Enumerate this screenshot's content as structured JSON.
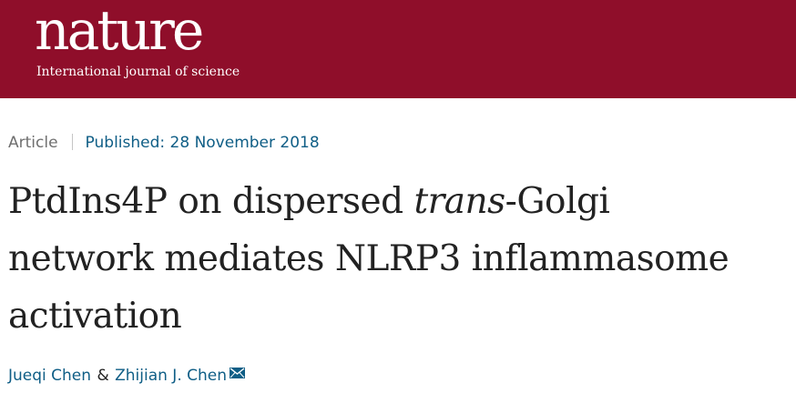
{
  "masthead": {
    "logo_text": "nature",
    "tagline": "International journal of science",
    "background_color": "#8f0e2a"
  },
  "article": {
    "type": "Article",
    "published_label": "Published:",
    "published_date": "28 November 2018",
    "title": {
      "line1_before_italic": "PtdIns4P on dispersed ",
      "line1_italic": "trans",
      "line1_after_italic": "-Golgi",
      "line2": "network mediates NLRP3 inflammasome",
      "line3": "activation"
    },
    "authors": [
      {
        "name": "Jueqi Chen"
      },
      {
        "name": "Zhijian J. Chen",
        "icon": "mail-icon"
      }
    ],
    "author_separator": "&",
    "link_color": "#0f5e86"
  }
}
